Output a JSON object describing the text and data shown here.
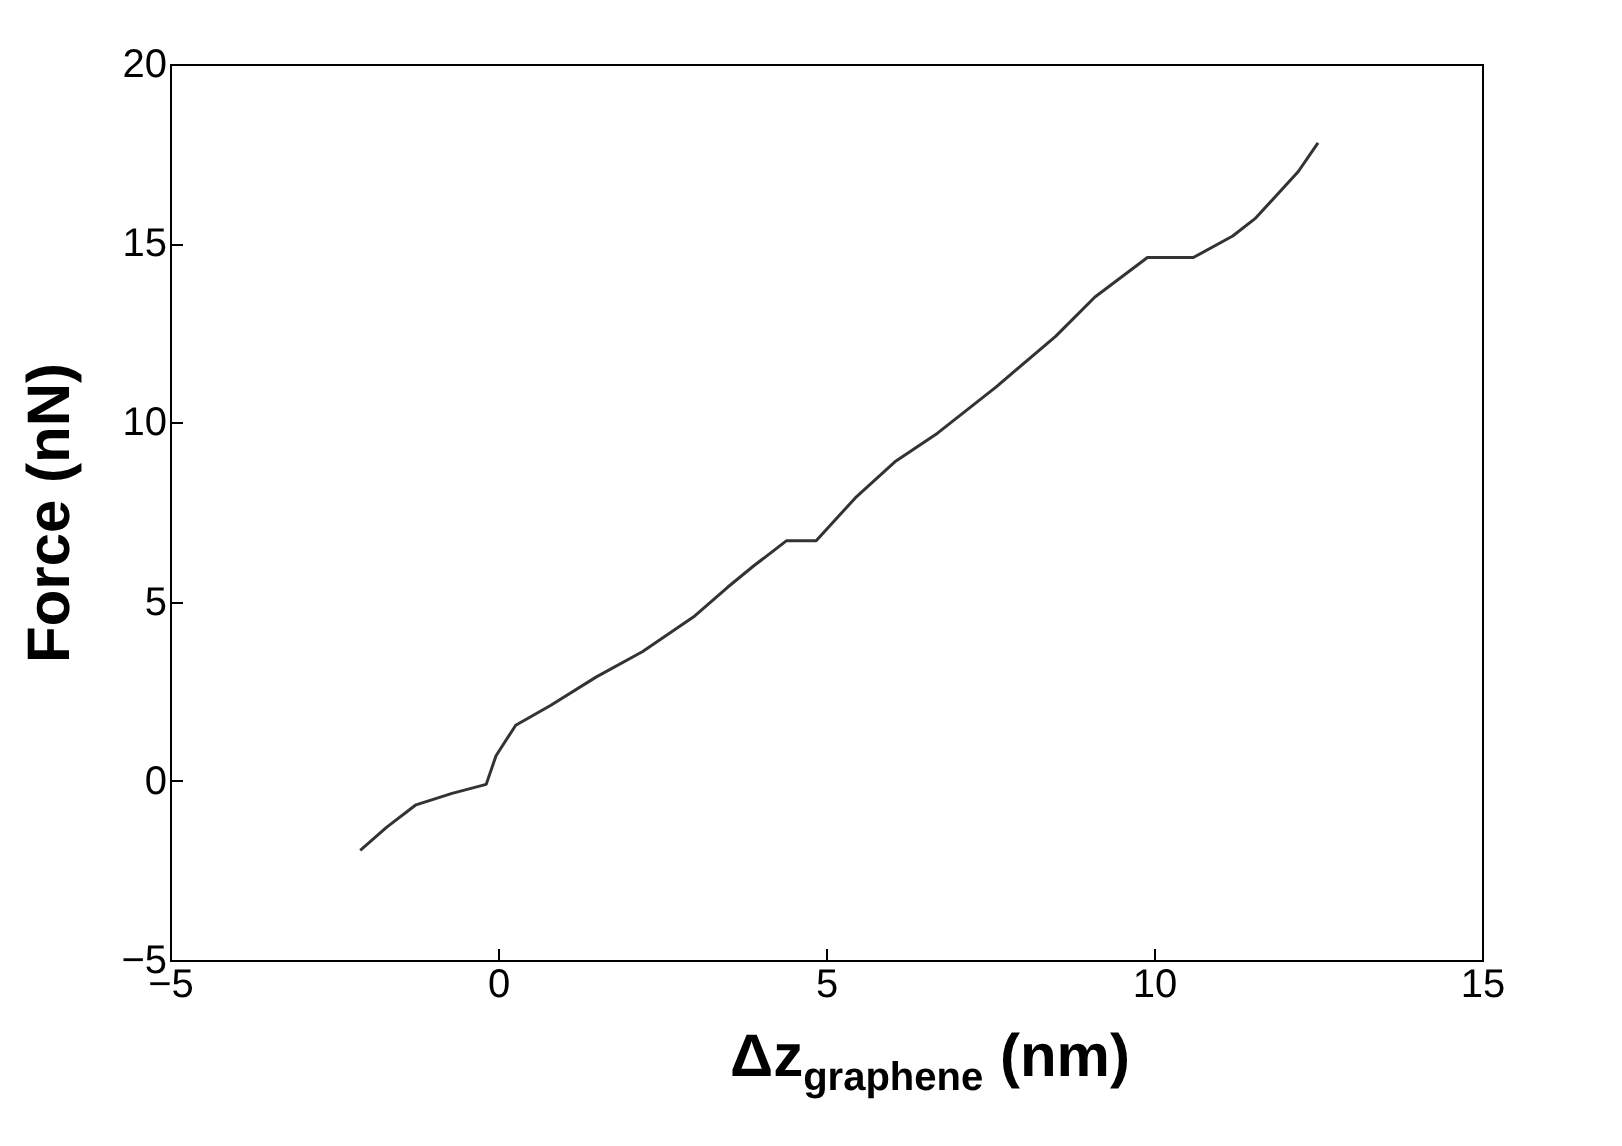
{
  "chart_data": {
    "type": "line",
    "xlabel": "Δz$_{graphene}$ (nm)",
    "ylabel": "Force (nN)",
    "xlim": [
      -5,
      15
    ],
    "ylim": [
      -5,
      20
    ],
    "xticks": [
      -5,
      0,
      5,
      10,
      15
    ],
    "yticks": [
      -5,
      0,
      5,
      10,
      15,
      20
    ],
    "grid": false,
    "marker": "none",
    "line_style": "solid",
    "series": [
      {
        "color": "#333333",
        "x": [
          -2.1,
          -1.7,
          -1.25,
          -0.7,
          -0.18,
          -0.03,
          0.27,
          0.8,
          1.5,
          2.2,
          3.0,
          3.5,
          3.9,
          4.4,
          4.85,
          5.45,
          6.05,
          6.7,
          7.6,
          8.5,
          9.1,
          9.9,
          10.6,
          11.2,
          11.55,
          12.2,
          12.5
        ],
        "values": [
          -1.94,
          -1.3,
          -0.67,
          -0.35,
          -0.1,
          0.7,
          1.55,
          2.1,
          2.9,
          3.6,
          4.6,
          5.4,
          6.0,
          6.7,
          6.7,
          7.9,
          8.9,
          9.7,
          11.0,
          12.4,
          13.5,
          14.6,
          14.6,
          15.2,
          15.7,
          17.0,
          17.8
        ]
      }
    ]
  }
}
